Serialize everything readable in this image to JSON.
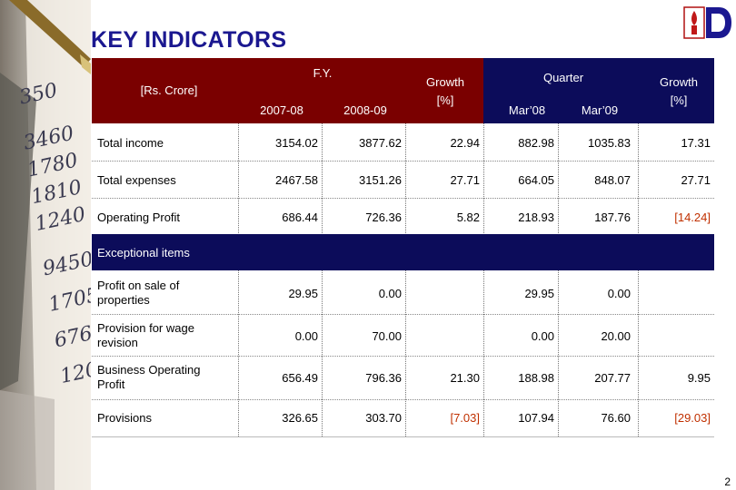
{
  "title": "KEY INDICATORS",
  "header": {
    "unit": "[Rs. Crore]",
    "fy": "F.Y.",
    "fy_col1": "2007-08",
    "fy_col2": "2008-09",
    "growth1_line1": "Growth",
    "growth1_line2": "[%]",
    "quarter": "Quarter",
    "q_col1": "Mar’08",
    "q_col2": "Mar’09",
    "growth2_line1": "Growth",
    "growth2_line2": "[%]"
  },
  "rows": [
    {
      "label": "Total income",
      "c1": "3154.02",
      "c2": "3877.62",
      "g1": "22.94",
      "q1": "882.98",
      "q2": "1035.83",
      "g2": "17.31"
    },
    {
      "label": "Total expenses",
      "c1": "2467.58",
      "c2": "3151.26",
      "g1": "27.71",
      "q1": "664.05",
      "q2": "848.07",
      "g2": "27.71"
    },
    {
      "label": "Operating Profit",
      "c1": "686.44",
      "c2": "726.36",
      "g1": "5.82",
      "q1": "218.93",
      "q2": "187.76",
      "g2": "[14.24]"
    }
  ],
  "section_band": "Exceptional items",
  "rows2": [
    {
      "label_l1": "Profit on sale of",
      "label_l2": "properties",
      "c1": "29.95",
      "c2": "0.00",
      "g1": "",
      "q1": "29.95",
      "q2": "0.00",
      "g2": ""
    },
    {
      "label_l1": "Provision for wage",
      "label_l2": "revision",
      "c1": "0.00",
      "c2": "70.00",
      "g1": "",
      "q1": "0.00",
      "q2": "20.00",
      "g2": ""
    },
    {
      "label_l1": "Business Operating",
      "label_l2": "Profit",
      "c1": "656.49",
      "c2": "796.36",
      "g1": "21.30",
      "q1": "188.98",
      "q2": "207.77",
      "g2": "9.95"
    },
    {
      "label_l1": "Provisions",
      "label_l2": "",
      "c1": "326.65",
      "c2": "303.70",
      "g1": "[7.03]",
      "q1": "107.94",
      "q2": "76.60",
      "g2": "[29.03]"
    }
  ],
  "page_number": "2",
  "colors": {
    "title": "#1b1890",
    "maroon": "#7a0000",
    "navy": "#0c0c5a",
    "negative": "#c03000"
  }
}
